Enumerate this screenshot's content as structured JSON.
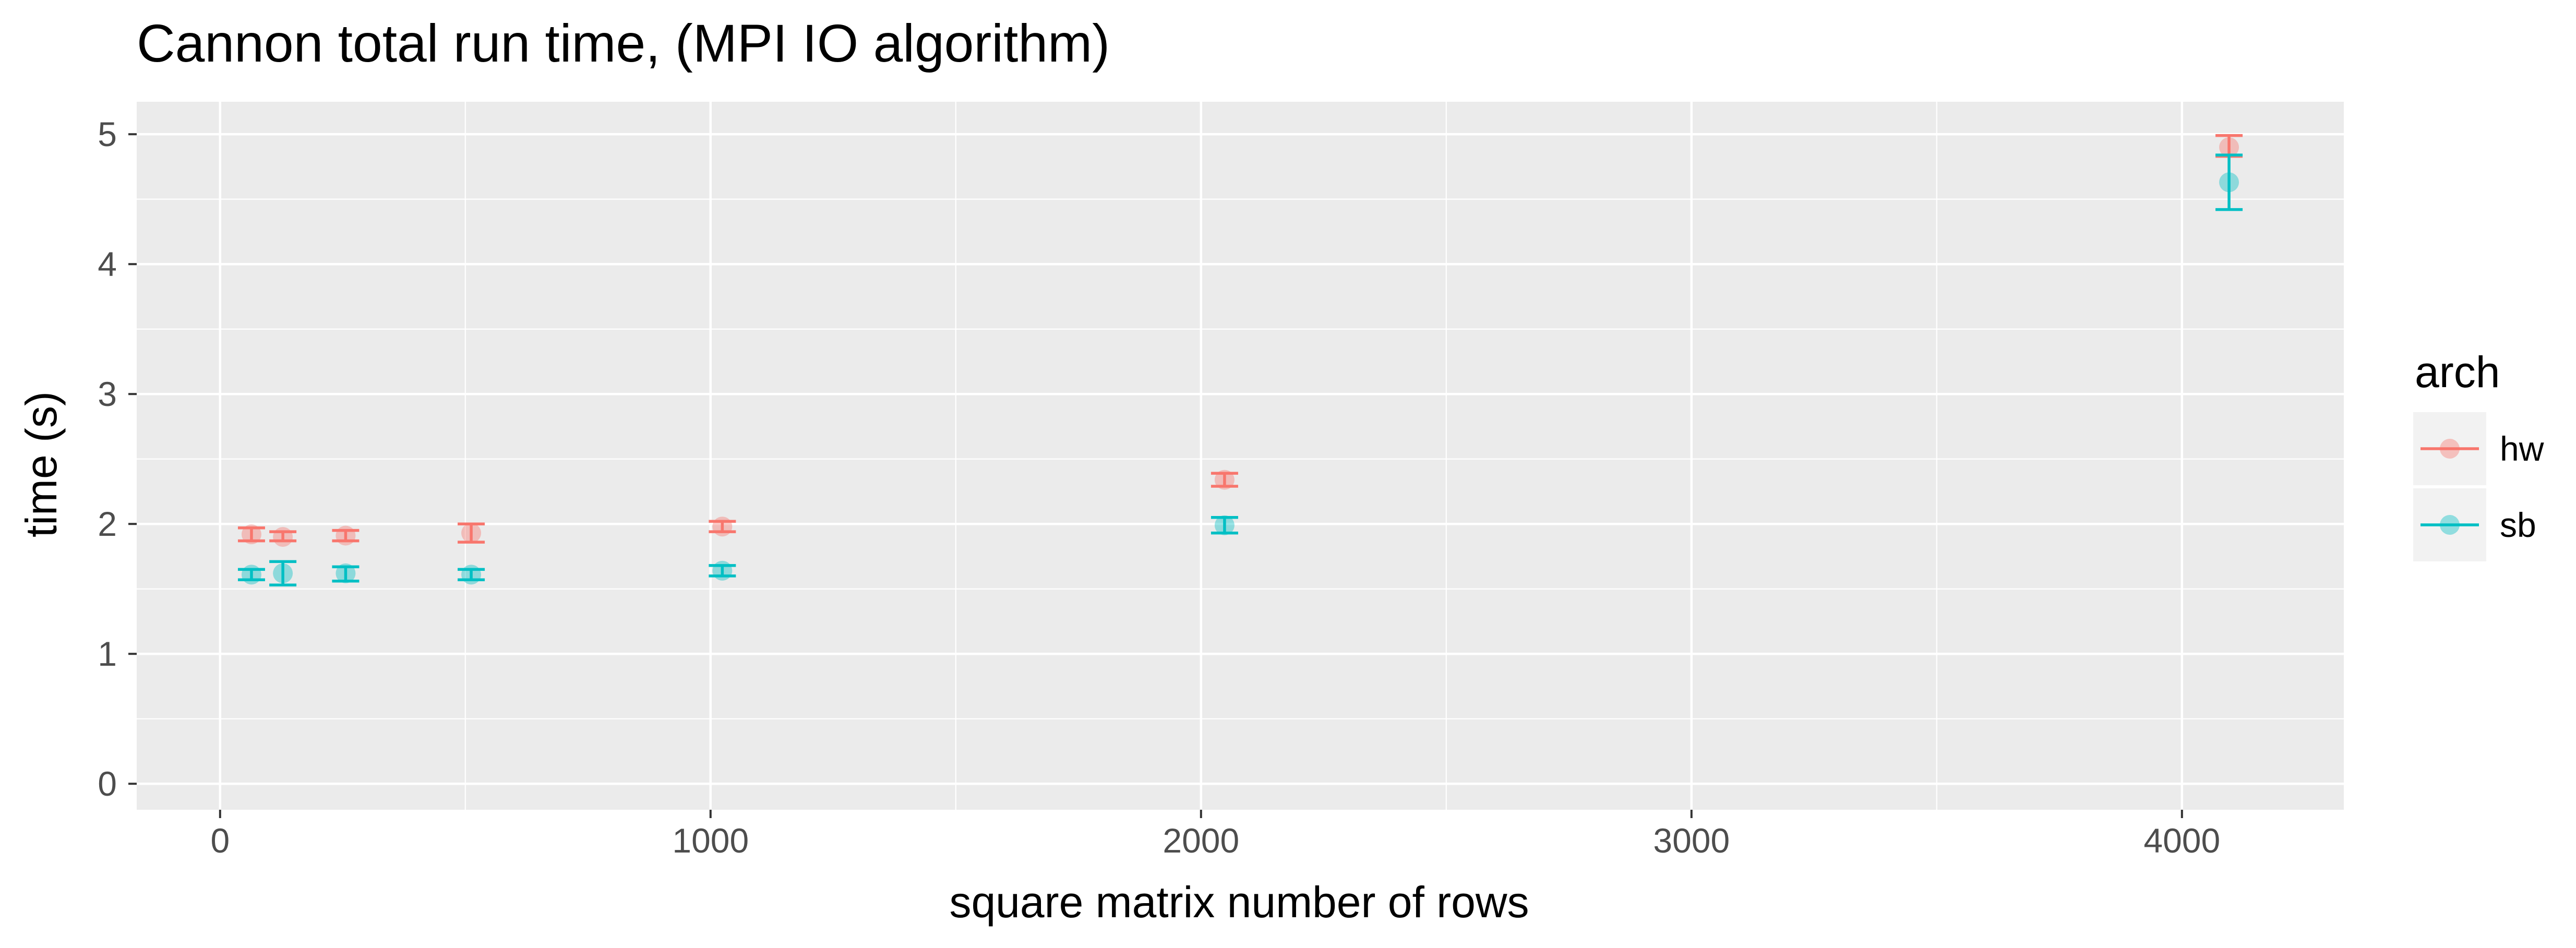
{
  "chart_data": {
    "type": "scatter",
    "title": "Cannon total run time, (MPI IO algorithm)",
    "xlabel": "square matrix number of rows",
    "ylabel": "time (s)",
    "xlim": [
      -170,
      4330
    ],
    "ylim": [
      -0.2,
      5.25
    ],
    "xticks": [
      0,
      1000,
      2000,
      3000,
      4000
    ],
    "xtick_labels": [
      "0",
      "1000",
      "2000",
      "3000",
      "4000"
    ],
    "yticks": [
      0,
      1,
      2,
      3,
      4,
      5
    ],
    "ytick_labels": [
      "0",
      "1",
      "2",
      "3",
      "4",
      "5"
    ],
    "grid": true,
    "legend": {
      "title": "arch",
      "position": "right",
      "entries": [
        "hw",
        "sb"
      ]
    },
    "series": [
      {
        "name": "hw",
        "color": "#F8766D",
        "points": [
          {
            "x": 64,
            "y": 1.92,
            "ymin": 1.87,
            "ymax": 1.97
          },
          {
            "x": 128,
            "y": 1.9,
            "ymin": 1.87,
            "ymax": 1.94
          },
          {
            "x": 256,
            "y": 1.91,
            "ymin": 1.87,
            "ymax": 1.95
          },
          {
            "x": 512,
            "y": 1.93,
            "ymin": 1.86,
            "ymax": 2.0
          },
          {
            "x": 1024,
            "y": 1.98,
            "ymin": 1.94,
            "ymax": 2.02
          },
          {
            "x": 2048,
            "y": 2.34,
            "ymin": 2.29,
            "ymax": 2.39
          },
          {
            "x": 4096,
            "y": 4.9,
            "ymin": 4.83,
            "ymax": 4.99
          }
        ]
      },
      {
        "name": "sb",
        "color": "#00BFC4",
        "points": [
          {
            "x": 64,
            "y": 1.61,
            "ymin": 1.57,
            "ymax": 1.65
          },
          {
            "x": 128,
            "y": 1.62,
            "ymin": 1.53,
            "ymax": 1.71
          },
          {
            "x": 256,
            "y": 1.62,
            "ymin": 1.56,
            "ymax": 1.67
          },
          {
            "x": 512,
            "y": 1.61,
            "ymin": 1.57,
            "ymax": 1.65
          },
          {
            "x": 1024,
            "y": 1.64,
            "ymin": 1.6,
            "ymax": 1.68
          },
          {
            "x": 2048,
            "y": 1.99,
            "ymin": 1.93,
            "ymax": 2.05
          },
          {
            "x": 4096,
            "y": 4.63,
            "ymin": 4.42,
            "ymax": 4.84
          }
        ]
      }
    ]
  }
}
